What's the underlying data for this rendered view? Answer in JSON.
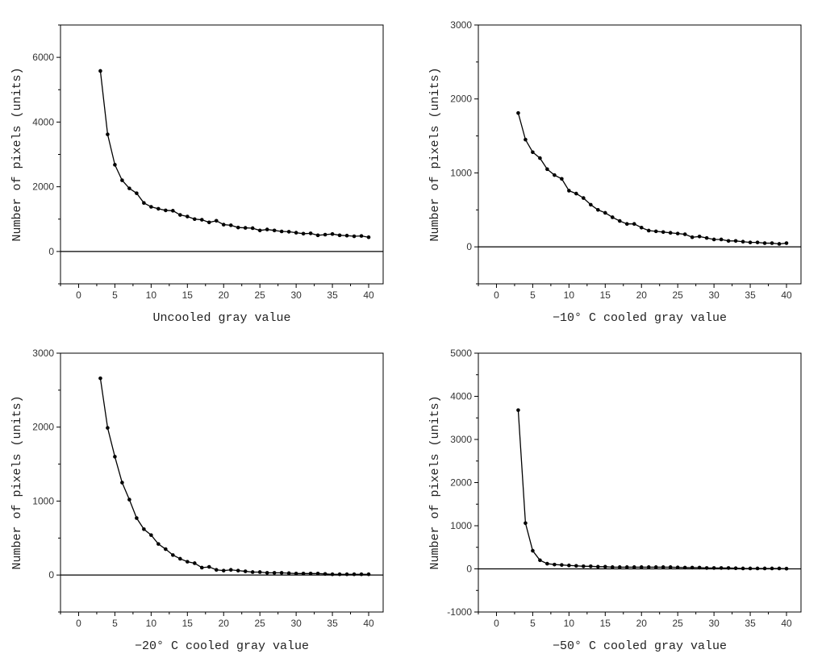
{
  "chart_data": [
    {
      "type": "line",
      "xlabel": "Uncooled gray value",
      "ylabel": "Number of pixels (units)",
      "xlim": [
        -2.5,
        42
      ],
      "ylim": [
        -1000,
        7000
      ],
      "xticks": [
        0,
        5,
        10,
        15,
        20,
        25,
        30,
        35,
        40
      ],
      "yticks": [
        0,
        2000,
        4000,
        6000
      ],
      "grid": false,
      "zero_line": true,
      "x": [
        3,
        4,
        5,
        6,
        7,
        8,
        9,
        10,
        11,
        12,
        13,
        14,
        15,
        16,
        17,
        18,
        19,
        20,
        21,
        22,
        23,
        24,
        25,
        26,
        27,
        28,
        29,
        30,
        31,
        32,
        33,
        34,
        35,
        36,
        37,
        38,
        39,
        40
      ],
      "series": [
        {
          "values": [
            5580,
            3620,
            2680,
            2200,
            1950,
            1800,
            1500,
            1380,
            1320,
            1270,
            1260,
            1130,
            1080,
            1000,
            980,
            900,
            950,
            830,
            810,
            740,
            730,
            720,
            650,
            680,
            650,
            620,
            610,
            580,
            550,
            560,
            500,
            520,
            540,
            500,
            490,
            470,
            480,
            440
          ]
        }
      ]
    },
    {
      "type": "line",
      "xlabel": "−10° C cooled gray value",
      "ylabel": "Number of pixels (units)",
      "xlim": [
        -2.5,
        42
      ],
      "ylim": [
        -500,
        3000
      ],
      "xticks": [
        0,
        5,
        10,
        15,
        20,
        25,
        30,
        35,
        40
      ],
      "yticks": [
        0,
        1000,
        2000,
        3000
      ],
      "grid": false,
      "zero_line": true,
      "x": [
        3,
        4,
        5,
        6,
        7,
        8,
        9,
        10,
        11,
        12,
        13,
        14,
        15,
        16,
        17,
        18,
        19,
        20,
        21,
        22,
        23,
        24,
        25,
        26,
        27,
        28,
        29,
        30,
        31,
        32,
        33,
        34,
        35,
        36,
        37,
        38,
        39,
        40
      ],
      "series": [
        {
          "values": [
            1810,
            1450,
            1280,
            1200,
            1050,
            970,
            920,
            760,
            720,
            660,
            570,
            500,
            460,
            400,
            350,
            310,
            310,
            260,
            220,
            210,
            200,
            190,
            180,
            170,
            130,
            140,
            120,
            100,
            100,
            80,
            80,
            70,
            60,
            60,
            50,
            50,
            40,
            50
          ]
        }
      ]
    },
    {
      "type": "line",
      "xlabel": "−20° C cooled gray value",
      "ylabel": "Number of pixels (units)",
      "xlim": [
        -2.5,
        42
      ],
      "ylim": [
        -500,
        3000
      ],
      "xticks": [
        0,
        5,
        10,
        15,
        20,
        25,
        30,
        35,
        40
      ],
      "yticks": [
        0,
        1000,
        2000,
        3000
      ],
      "grid": false,
      "zero_line": true,
      "x": [
        3,
        4,
        5,
        6,
        7,
        8,
        9,
        10,
        11,
        12,
        13,
        14,
        15,
        16,
        17,
        18,
        19,
        20,
        21,
        22,
        23,
        24,
        25,
        26,
        27,
        28,
        29,
        30,
        31,
        32,
        33,
        34,
        35,
        36,
        37,
        38,
        39,
        40
      ],
      "series": [
        {
          "values": [
            2660,
            1990,
            1600,
            1250,
            1020,
            770,
            620,
            540,
            420,
            350,
            270,
            220,
            180,
            160,
            100,
            110,
            70,
            60,
            70,
            60,
            50,
            40,
            40,
            30,
            30,
            30,
            25,
            20,
            20,
            20,
            20,
            15,
            10,
            10,
            10,
            10,
            10,
            10
          ]
        }
      ]
    },
    {
      "type": "line",
      "xlabel": "−50° C cooled gray value",
      "ylabel": "Number of pixels (units)",
      "xlim": [
        -2.5,
        42
      ],
      "ylim": [
        -1000,
        5000
      ],
      "xticks": [
        0,
        5,
        10,
        15,
        20,
        25,
        30,
        35,
        40
      ],
      "yticks": [
        -1000,
        0,
        1000,
        2000,
        3000,
        4000,
        5000
      ],
      "grid": false,
      "zero_line": true,
      "x": [
        3,
        4,
        5,
        6,
        7,
        8,
        9,
        10,
        11,
        12,
        13,
        14,
        15,
        16,
        17,
        18,
        19,
        20,
        21,
        22,
        23,
        24,
        25,
        26,
        27,
        28,
        29,
        30,
        31,
        32,
        33,
        34,
        35,
        36,
        37,
        38,
        39,
        40
      ],
      "series": [
        {
          "values": [
            3680,
            1060,
            420,
            200,
            120,
            100,
            90,
            80,
            70,
            60,
            60,
            50,
            50,
            40,
            40,
            40,
            40,
            40,
            40,
            40,
            40,
            40,
            35,
            30,
            30,
            30,
            20,
            20,
            20,
            20,
            15,
            10,
            10,
            10,
            10,
            10,
            10,
            5
          ]
        }
      ]
    }
  ]
}
